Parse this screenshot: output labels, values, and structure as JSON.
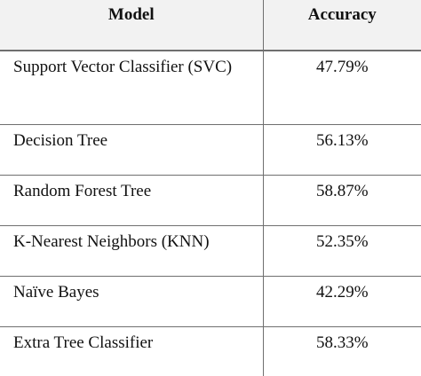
{
  "table": {
    "headers": {
      "model": "Model",
      "accuracy": "Accuracy"
    },
    "rows": [
      {
        "model": "Support Vector Classifier (SVC)",
        "accuracy": "47.79%"
      },
      {
        "model": "Decision Tree",
        "accuracy": "56.13%"
      },
      {
        "model": "Random Forest Tree",
        "accuracy": "58.87%"
      },
      {
        "model": "K-Nearest Neighbors (KNN)",
        "accuracy": "52.35%"
      },
      {
        "model": "Naïve Bayes",
        "accuracy": "42.29%"
      },
      {
        "model": "Extra Tree Classifier",
        "accuracy": "58.33%"
      }
    ]
  }
}
